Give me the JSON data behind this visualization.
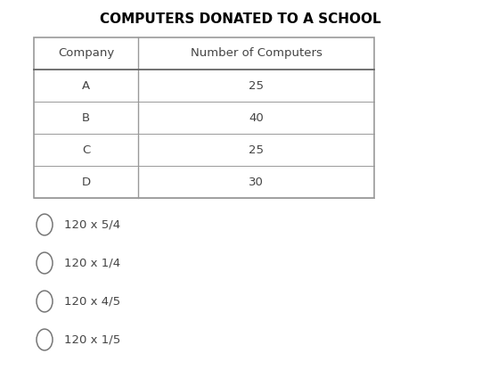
{
  "title": "COMPUTERS DONATED TO A SCHOOL",
  "col_headers": [
    "Company",
    "Number of Computers"
  ],
  "rows": [
    [
      "A",
      "25"
    ],
    [
      "B",
      "40"
    ],
    [
      "C",
      "25"
    ],
    [
      "D",
      "30"
    ]
  ],
  "options": [
    "120 x 5/4",
    "120 x 1/4",
    "120 x 4/5",
    "120 x 1/5"
  ],
  "bg_color": "#ffffff",
  "text_color": "#444444",
  "title_color": "#000000",
  "table_border_color": "#999999",
  "header_line_color": "#666666"
}
